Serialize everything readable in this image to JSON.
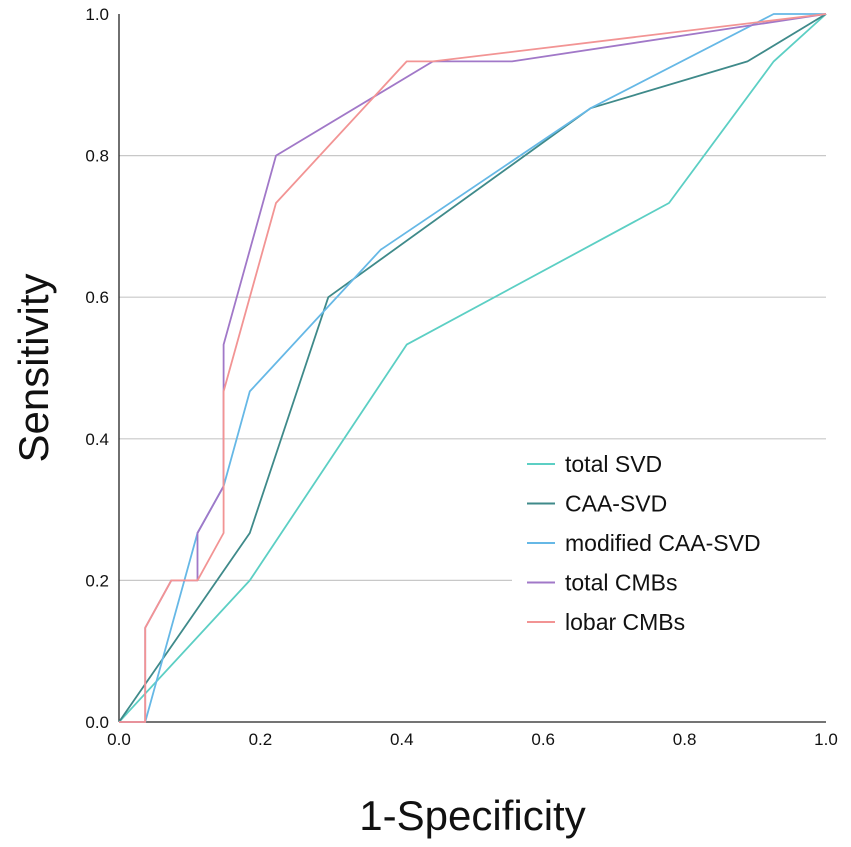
{
  "chart_data": {
    "type": "line",
    "title": "",
    "xlabel": "1-Specificity",
    "ylabel": "Sensitivity",
    "xlim": [
      0.0,
      1.0
    ],
    "ylim": [
      0.0,
      1.0
    ],
    "xticks": [
      "0.0",
      "0.2",
      "0.4",
      "0.6",
      "0.8",
      "1.0"
    ],
    "yticks": [
      "0.0",
      "0.2",
      "0.4",
      "0.6",
      "0.8",
      "1.0"
    ],
    "grid": "horizontal",
    "legend_position": "lower-right",
    "series": [
      {
        "name": "total SVD",
        "color": "#5ccfc4",
        "x": [
          0.0,
          0.185,
          0.407,
          0.778,
          0.926,
          1.0
        ],
        "y": [
          0.0,
          0.2,
          0.533,
          0.733,
          0.933,
          1.0
        ]
      },
      {
        "name": "CAA-SVD",
        "color": "#3f8a8a",
        "x": [
          0.0,
          0.185,
          0.296,
          0.667,
          0.889,
          1.0
        ],
        "y": [
          0.0,
          0.267,
          0.6,
          0.867,
          0.933,
          1.0
        ]
      },
      {
        "name": "modified CAA-SVD",
        "color": "#66b8e6",
        "x": [
          0.0,
          0.037,
          0.111,
          0.148,
          0.185,
          0.37,
          0.667,
          0.926,
          1.0
        ],
        "y": [
          0.0,
          0.0,
          0.267,
          0.333,
          0.467,
          0.667,
          0.867,
          1.0,
          1.0
        ]
      },
      {
        "name": "total CMBs",
        "color": "#a178c8",
        "x": [
          0.0,
          0.037,
          0.037,
          0.074,
          0.111,
          0.111,
          0.148,
          0.148,
          0.222,
          0.444,
          0.556,
          1.0
        ],
        "y": [
          0.0,
          0.0,
          0.133,
          0.2,
          0.2,
          0.267,
          0.333,
          0.533,
          0.8,
          0.933,
          0.933,
          1.0
        ]
      },
      {
        "name": "lobar CMBs",
        "color": "#f29494",
        "x": [
          0.0,
          0.037,
          0.037,
          0.074,
          0.111,
          0.148,
          0.148,
          0.222,
          0.407,
          0.444,
          1.0
        ],
        "y": [
          0.0,
          0.0,
          0.133,
          0.2,
          0.2,
          0.267,
          0.467,
          0.733,
          0.933,
          0.933,
          1.0
        ]
      }
    ]
  }
}
